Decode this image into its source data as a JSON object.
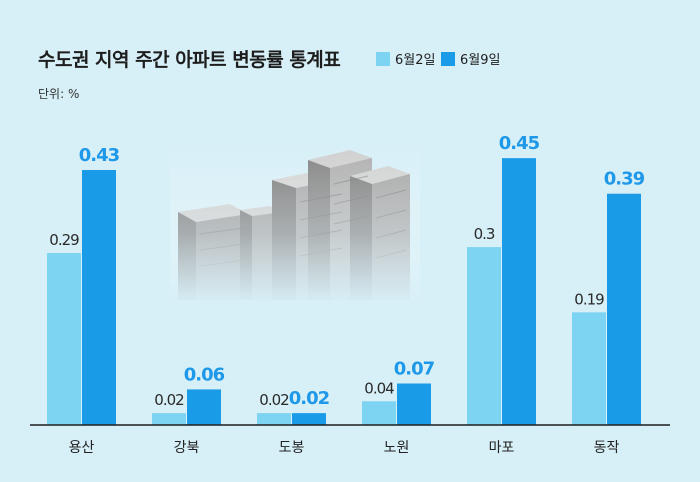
{
  "chart_data": {
    "type": "bar",
    "title": "수도권 지역 주간 아파트 변동률 통계표",
    "unit_label": "단위: %",
    "categories": [
      "용산",
      "강북",
      "도봉",
      "노원",
      "마포",
      "동작"
    ],
    "series": [
      {
        "name": "6월2일",
        "values": [
          0.29,
          0.02,
          0.02,
          0.04,
          0.3,
          0.19
        ],
        "value_labels": [
          "0.29",
          "0.02",
          "0.02",
          "0.04",
          "0.3",
          "0.19"
        ],
        "color": "#7dd3f2"
      },
      {
        "name": "6월9일",
        "values": [
          0.43,
          0.06,
          0.02,
          0.07,
          0.45,
          0.39
        ],
        "value_labels": [
          "0.43",
          "0.06",
          "0.02",
          "0.07",
          "0.45",
          "0.39"
        ],
        "color": "#1a9be8"
      }
    ],
    "ylim": [
      0,
      0.5
    ],
    "grid": false,
    "legend": "top-right"
  },
  "colors": {
    "background": "#d7eff7",
    "old": "#7dd3f2",
    "new": "#1a9be8",
    "label_new": "#1e98e8"
  }
}
